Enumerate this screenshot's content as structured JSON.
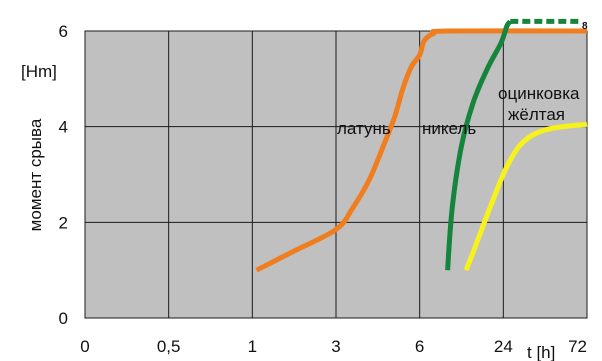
{
  "chart_data": {
    "type": "line",
    "title": "",
    "ylabel": "момент срыва",
    "yunit": "[Hm]",
    "xlabel": "t [h]",
    "plot_background": "#c0c0c0",
    "grid": true,
    "ylim": [
      0,
      6
    ],
    "y_ticks": [
      "0",
      "2",
      "4",
      "6"
    ],
    "x_ticks": [
      "0",
      "0,5",
      "1",
      "3",
      "6",
      "24",
      "72"
    ],
    "annotations": [
      "латунь",
      "никель",
      "оцинковка",
      "жёлтая"
    ],
    "infinity_mark": "8",
    "series": [
      {
        "label_ref": "латунь",
        "color": "#f07d1e",
        "points": [
          {
            "x": 1.1,
            "y": 1.0
          },
          {
            "x": 2.0,
            "y": 1.4
          },
          {
            "x": 3.0,
            "y": 1.85
          },
          {
            "x": 3.6,
            "y": 2.3
          },
          {
            "x": 4.2,
            "y": 2.9
          },
          {
            "x": 4.7,
            "y": 3.6
          },
          {
            "x": 5.1,
            "y": 4.2
          },
          {
            "x": 5.4,
            "y": 4.8
          },
          {
            "x": 5.7,
            "y": 5.25
          },
          {
            "x": 6.0,
            "y": 5.5
          },
          {
            "x": 7.0,
            "y": 5.8
          },
          {
            "x": 9.0,
            "y": 5.95
          },
          {
            "x": 12.0,
            "y": 6.0
          },
          {
            "x": 72.0,
            "y": 6.0
          }
        ]
      },
      {
        "label_ref": "никель",
        "color": "#15843c",
        "points": [
          {
            "x": 12.0,
            "y": 1.0
          },
          {
            "x": 13.0,
            "y": 2.3
          },
          {
            "x": 15.0,
            "y": 3.6
          },
          {
            "x": 17.5,
            "y": 4.5
          },
          {
            "x": 20.5,
            "y": 5.2
          },
          {
            "x": 23.5,
            "y": 5.75
          },
          {
            "x": 26.0,
            "y": 6.1
          },
          {
            "x": 28.0,
            "y": 6.2
          }
        ]
      },
      {
        "label_ref": "никель-dashed",
        "color": "#15843c",
        "dashed": true,
        "points": [
          {
            "x": 28.0,
            "y": 6.2
          },
          {
            "x": 67.0,
            "y": 6.2
          }
        ]
      },
      {
        "label_ref": "оцинковка жёлтая",
        "color": "#f7f21c",
        "points": [
          {
            "x": 16.0,
            "y": 1.0
          },
          {
            "x": 18.0,
            "y": 1.5
          },
          {
            "x": 21.5,
            "y": 2.4
          },
          {
            "x": 26.5,
            "y": 3.2
          },
          {
            "x": 36.0,
            "y": 3.7
          },
          {
            "x": 50.0,
            "y": 3.95
          },
          {
            "x": 72.0,
            "y": 4.05
          }
        ]
      }
    ]
  }
}
